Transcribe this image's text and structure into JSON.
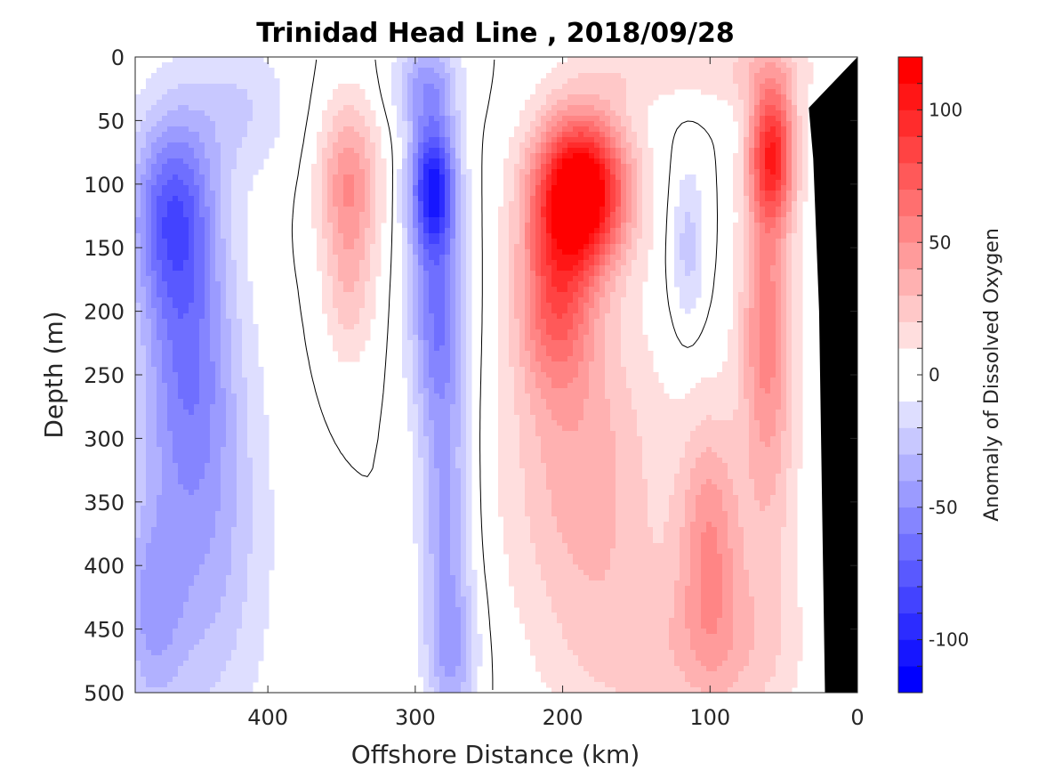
{
  "chart_data": {
    "type": "heatmap",
    "title": "Trinidad Head Line , 2018/09/28",
    "xlabel": "Offshore Distance (km)",
    "ylabel": "Depth (m)",
    "colorbar_label": "Anomaly of Dissolved Oxygen",
    "xlim": [
      490,
      0
    ],
    "ylim": [
      0,
      500
    ],
    "y_reversed": true,
    "x_reversed": true,
    "x_ticks": [
      400,
      300,
      200,
      100,
      0
    ],
    "y_ticks": [
      0,
      50,
      100,
      150,
      200,
      250,
      300,
      350,
      400,
      450,
      500
    ],
    "clim": [
      -120,
      120
    ],
    "colorbar_ticks": [
      100,
      50,
      0,
      -50,
      -100
    ],
    "colorbar_levels": 24,
    "colormap": {
      "negative": "#0000ff",
      "zero": "#ffffff",
      "positive": "#ff0000"
    },
    "bathymetry_color": "#000000",
    "zero_contour_color": "#000000",
    "bathymetry": [
      [
        22,
        500
      ],
      [
        24,
        350
      ],
      [
        26,
        200
      ],
      [
        30,
        80
      ],
      [
        33,
        40
      ],
      [
        0,
        0
      ]
    ],
    "features": [
      {
        "x": 465,
        "y": 120,
        "value": -65,
        "sx": 20,
        "sy": 55
      },
      {
        "x": 455,
        "y": 230,
        "value": -45,
        "sx": 22,
        "sy": 80
      },
      {
        "x": 445,
        "y": 380,
        "value": -35,
        "sx": 30,
        "sy": 110
      },
      {
        "x": 480,
        "y": 440,
        "value": -30,
        "sx": 15,
        "sy": 60
      },
      {
        "x": 420,
        "y": 40,
        "value": -20,
        "sx": 25,
        "sy": 40
      },
      {
        "x": 345,
        "y": 100,
        "value": 50,
        "sx": 14,
        "sy": 45
      },
      {
        "x": 345,
        "y": 190,
        "value": 22,
        "sx": 12,
        "sy": 40
      },
      {
        "x": 288,
        "y": 100,
        "value": -95,
        "sx": 11,
        "sy": 38
      },
      {
        "x": 285,
        "y": 200,
        "value": -55,
        "sx": 13,
        "sy": 60
      },
      {
        "x": 280,
        "y": 350,
        "value": -40,
        "sx": 12,
        "sy": 80
      },
      {
        "x": 275,
        "y": 470,
        "value": -35,
        "sx": 12,
        "sy": 45
      },
      {
        "x": 292,
        "y": 20,
        "value": -40,
        "sx": 15,
        "sy": 25
      },
      {
        "x": 188,
        "y": 105,
        "value": 135,
        "sx": 22,
        "sy": 42
      },
      {
        "x": 205,
        "y": 190,
        "value": 60,
        "sx": 18,
        "sy": 50
      },
      {
        "x": 190,
        "y": 300,
        "value": 30,
        "sx": 35,
        "sy": 90
      },
      {
        "x": 170,
        "y": 420,
        "value": 15,
        "sx": 40,
        "sy": 90
      },
      {
        "x": 150,
        "y": 10,
        "value": 15,
        "sx": 30,
        "sy": 20
      },
      {
        "x": 115,
        "y": 150,
        "value": -25,
        "sx": 8,
        "sy": 45
      },
      {
        "x": 100,
        "y": 380,
        "value": 45,
        "sx": 15,
        "sy": 70
      },
      {
        "x": 58,
        "y": 75,
        "value": 95,
        "sx": 11,
        "sy": 40
      },
      {
        "x": 62,
        "y": 200,
        "value": 45,
        "sx": 12,
        "sy": 70
      },
      {
        "x": 60,
        "y": 320,
        "value": 25,
        "sx": 14,
        "sy": 90
      },
      {
        "x": 80,
        "y": 470,
        "value": 20,
        "sx": 30,
        "sy": 50
      },
      {
        "x": 140,
        "y": 470,
        "value": 12,
        "sx": 35,
        "sy": 40
      },
      {
        "x": 70,
        "y": 10,
        "value": 20,
        "sx": 30,
        "sy": 20
      }
    ]
  }
}
